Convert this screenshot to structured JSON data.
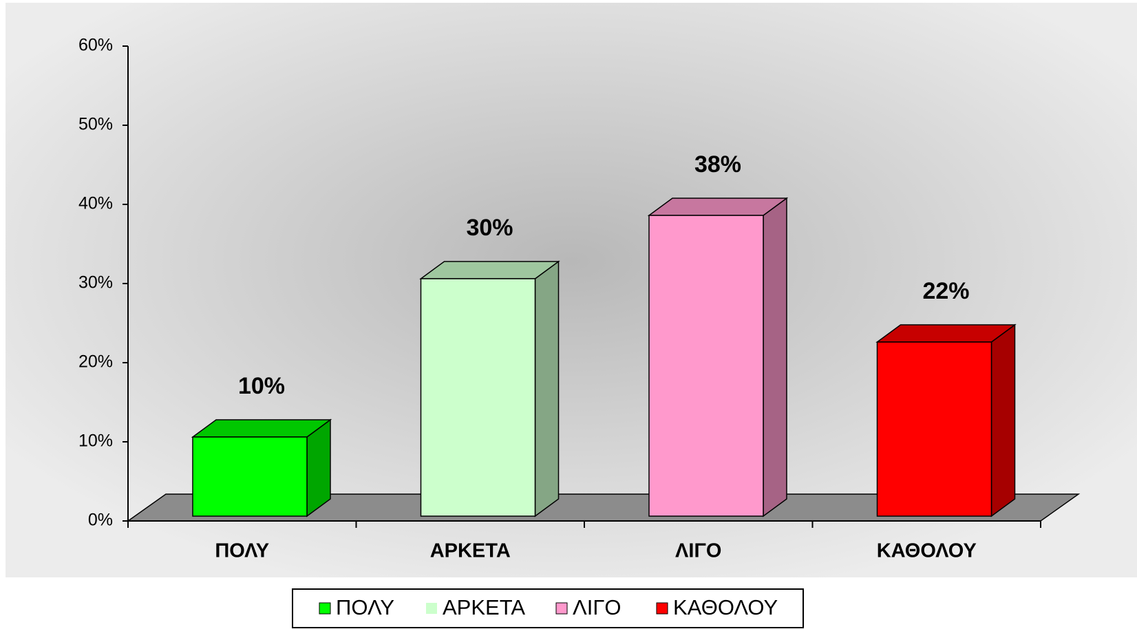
{
  "chart_data": {
    "type": "bar3d",
    "categories": [
      "ΠΟΛΥ",
      "ΑΡΚΕΤΑ",
      "ΛΙΓΟ",
      "ΚΑΘΟΛΟΥ"
    ],
    "values": [
      10,
      30,
      38,
      22
    ],
    "value_labels": [
      "10%",
      "30%",
      "38%",
      "22%"
    ],
    "colors": [
      "#00ff00",
      "#ccffcc",
      "#ff99cc",
      "#ff0000"
    ],
    "ylim": [
      0,
      60
    ],
    "yticks": [
      {
        "value": 0,
        "label": "0%"
      },
      {
        "value": 10,
        "label": "10%"
      },
      {
        "value": 20,
        "label": "20%"
      },
      {
        "value": 30,
        "label": "30%"
      },
      {
        "value": 40,
        "label": "40%"
      },
      {
        "value": 50,
        "label": "50%"
      },
      {
        "value": 60,
        "label": "60%"
      }
    ],
    "legend": "bottom"
  }
}
